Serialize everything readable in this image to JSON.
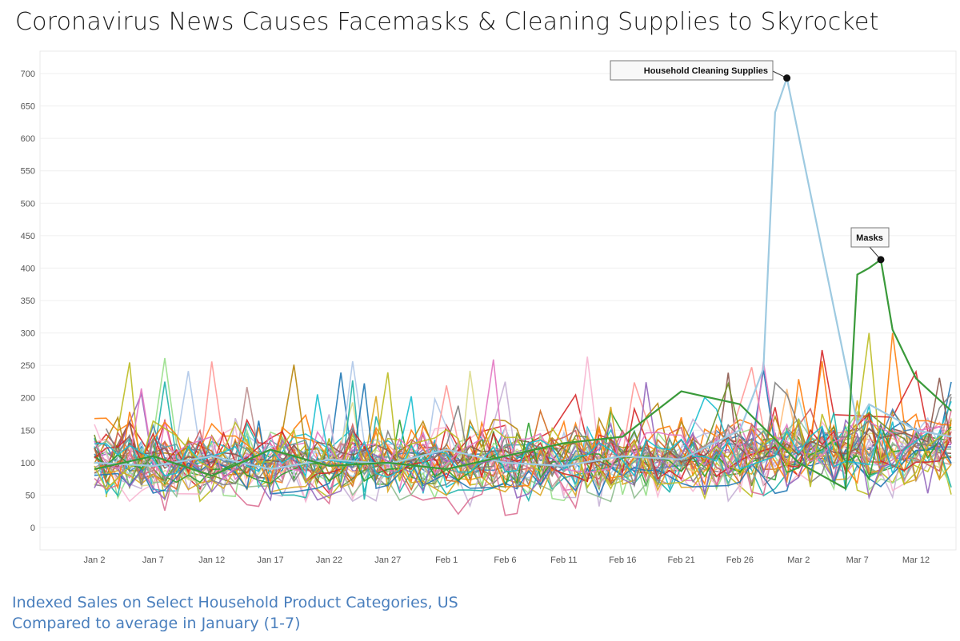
{
  "header": {
    "title": "Coronavirus News Causes Facemasks & Cleaning Supplies to Skyrocket"
  },
  "caption": {
    "line1": "Indexed Sales on Select Household Product Categories, US",
    "line2": "Compared to average in January (1-7)"
  },
  "chart_data": {
    "type": "line",
    "title": "Coronavirus News Causes Facemasks & Cleaning Supplies to Skyrocket",
    "xlabel": "",
    "ylabel": "",
    "x_range": [
      "2020-01-01",
      "2020-03-15"
    ],
    "ylim": [
      -40,
      720
    ],
    "yticks": [
      0,
      50,
      100,
      150,
      200,
      250,
      300,
      350,
      400,
      450,
      500,
      550,
      600,
      650,
      700
    ],
    "xticks": [
      {
        "date": "2020-01-02",
        "label": "Jan 2"
      },
      {
        "date": "2020-01-07",
        "label": "Jan 7"
      },
      {
        "date": "2020-01-12",
        "label": "Jan 12"
      },
      {
        "date": "2020-01-17",
        "label": "Jan 17"
      },
      {
        "date": "2020-01-22",
        "label": "Jan 22"
      },
      {
        "date": "2020-01-27",
        "label": "Jan 27"
      },
      {
        "date": "2020-02-01",
        "label": "Feb 1"
      },
      {
        "date": "2020-02-06",
        "label": "Feb 6"
      },
      {
        "date": "2020-02-11",
        "label": "Feb 11"
      },
      {
        "date": "2020-02-16",
        "label": "Feb 16"
      },
      {
        "date": "2020-02-21",
        "label": "Feb 21"
      },
      {
        "date": "2020-02-26",
        "label": "Feb 26"
      },
      {
        "date": "2020-03-02",
        "label": "Mar 2"
      },
      {
        "date": "2020-03-07",
        "label": "Mar 7"
      },
      {
        "date": "2020-03-12",
        "label": "Mar 12"
      }
    ],
    "grid": "horizontal",
    "legend": "none",
    "highlighted_series": [
      {
        "name": "Household Cleaning Supplies",
        "color": "#9ecae1",
        "x": [
          "2020-01-02",
          "2020-01-07",
          "2020-01-12",
          "2020-01-17",
          "2020-01-22",
          "2020-01-27",
          "2020-02-01",
          "2020-02-06",
          "2020-02-11",
          "2020-02-16",
          "2020-02-21",
          "2020-02-26",
          "2020-02-28",
          "2020-02-29",
          "2020-03-01",
          "2020-03-06",
          "2020-03-07",
          "2020-03-08",
          "2020-03-12",
          "2020-03-15"
        ],
        "y": [
          100,
          95,
          110,
          90,
          105,
          98,
          120,
          100,
          95,
          110,
          105,
          150,
          245,
          640,
          693,
          250,
          160,
          190,
          150,
          140
        ],
        "peak": {
          "x": "2020-03-01",
          "y": 693
        }
      },
      {
        "name": "Masks",
        "color": "#3a9a3a",
        "x": [
          "2020-01-02",
          "2020-01-07",
          "2020-01-12",
          "2020-01-17",
          "2020-01-22",
          "2020-01-27",
          "2020-02-01",
          "2020-02-06",
          "2020-02-11",
          "2020-02-16",
          "2020-02-21",
          "2020-02-26",
          "2020-03-02",
          "2020-03-06",
          "2020-03-07",
          "2020-03-08",
          "2020-03-09",
          "2020-03-10",
          "2020-03-12",
          "2020-03-15"
        ],
        "y": [
          90,
          110,
          80,
          120,
          95,
          100,
          90,
          110,
          130,
          140,
          210,
          190,
          100,
          60,
          390,
          400,
          413,
          305,
          230,
          180
        ],
        "peak": {
          "x": "2020-03-09",
          "y": 413
        }
      }
    ],
    "background_series_count": 40,
    "background_series_typical_range": [
      20,
      250
    ],
    "background_series_colors": [
      "#1f77b4",
      "#ff7f0e",
      "#2ca02c",
      "#d62728",
      "#9467bd",
      "#8c564b",
      "#e377c2",
      "#7f7f7f",
      "#bcbd22",
      "#17becf",
      "#aec7e8",
      "#ffbb78",
      "#98df8a",
      "#ff9896",
      "#c5b0d5",
      "#c49c94",
      "#f7b6d2",
      "#dbdb8d",
      "#9edae5",
      "#b8860b",
      "#20b2aa",
      "#cd5c5c",
      "#6b8e23",
      "#4682b4",
      "#d2691e",
      "#db7093",
      "#5f9ea0",
      "#bc8f8f",
      "#8fbc8f",
      "#daa520"
    ]
  }
}
